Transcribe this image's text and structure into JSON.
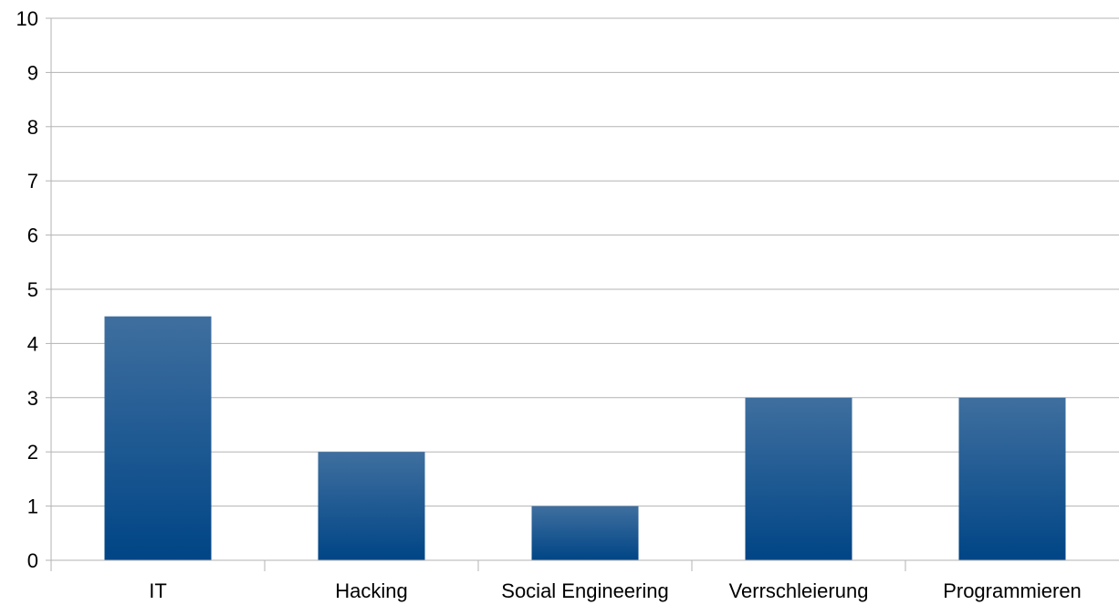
{
  "chart_data": {
    "type": "bar",
    "categories": [
      "IT",
      "Hacking",
      "Social Engineering",
      "Verrschleierung",
      "Programmieren"
    ],
    "values": [
      4.5,
      2,
      1,
      3,
      3
    ],
    "title": "",
    "xlabel": "",
    "ylabel": "",
    "ylim": [
      0,
      10
    ],
    "yticks": [
      "0",
      "1",
      "2",
      "3",
      "4",
      "5",
      "6",
      "7",
      "8",
      "9",
      "10"
    ],
    "grid": true,
    "legend": "none",
    "colors": {
      "bar_top": "#3f6f9f",
      "bar_bottom": "#004586",
      "grid": "#b3b3b3",
      "axis": "#b3b3b3"
    }
  }
}
